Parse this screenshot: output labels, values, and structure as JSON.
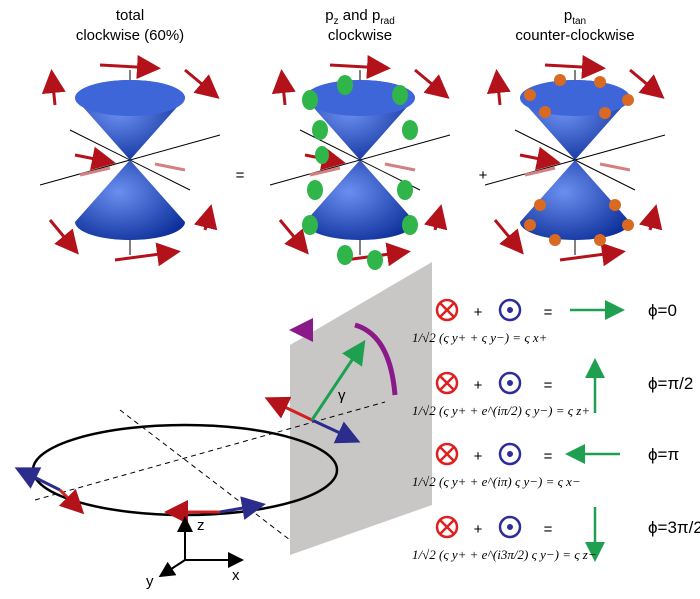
{
  "panels": [
    {
      "line1": "total",
      "line2": "clockwise (60%)"
    },
    {
      "line1": [
        "p",
        "z",
        " and p",
        "rad"
      ],
      "line2": "clockwise"
    },
    {
      "line1": [
        "p",
        "tan"
      ],
      "line2": "counter-clockwise"
    }
  ],
  "operators": {
    "equals": "=",
    "plus": "+"
  },
  "rows": [
    {
      "phi": "ϕ=0",
      "equation": "1/√2 (ς y+ + ς y−) = ς x+"
    },
    {
      "phi": "ϕ=π/2",
      "equation": "1/√2 (ς y+ + e^(iπ/2) ς y−) = ς z+"
    },
    {
      "phi": "ϕ=π",
      "equation": "1/√2 (ς y+ + e^(iπ) ς y−) = ς x−"
    },
    {
      "phi": "ϕ=3π/2",
      "equation": "1/√2 (ς y+ + e^(i3π/2) ς y−) = ς z−"
    }
  ],
  "axes": {
    "z": "z",
    "y": "y",
    "x": "x",
    "angle": "γ"
  }
}
